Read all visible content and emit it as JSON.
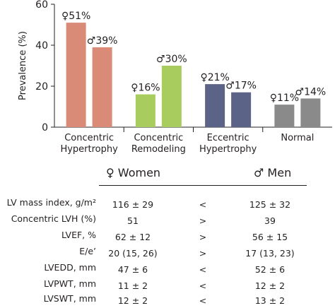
{
  "chart_data": {
    "type": "bar",
    "ylabel": "Prevalence (%)",
    "ylim": [
      0,
      60
    ],
    "yticks": [
      0,
      20,
      40,
      60
    ],
    "categories": [
      [
        "Concentric",
        "Hypertrophy"
      ],
      [
        "Concentric",
        "Remodeling"
      ],
      [
        "Eccentric",
        "Hypertrophy"
      ],
      [
        "Normal"
      ]
    ],
    "series": [
      {
        "values": [
          51,
          16,
          21,
          11
        ],
        "labels": [
          "♀51%",
          "♀16%",
          "♀21%",
          "♀11%"
        ]
      },
      {
        "values": [
          39,
          30,
          17,
          14
        ],
        "labels": [
          "♂39%",
          "♂30%",
          "♂17%",
          "♂14%"
        ]
      }
    ],
    "colors": {
      "female": [
        "#d98b78",
        "#a9cc5e",
        "#5b6387",
        "#8a8a8a"
      ],
      "male": [
        "#d98b78",
        "#a9cc5e",
        "#5b6387",
        "#8a8a8a"
      ]
    },
    "legend": "none",
    "grid": false
  },
  "table": {
    "women_header": "♀ Women",
    "men_header": "♂ Men",
    "rows": [
      {
        "label": "LV mass index, g/m²",
        "women": "116 ± 29",
        "cmp": "<",
        "men": "125 ± 32"
      },
      {
        "label": "Concentric LVH (%)",
        "women": "51",
        "cmp": ">",
        "men": "39"
      },
      {
        "label": "LVEF, %",
        "women": "62 ± 12",
        "cmp": ">",
        "men": "56 ± 15"
      },
      {
        "label": "E/e’",
        "women": "20 (15, 26)",
        "cmp": ">",
        "men": "17 (13, 23)"
      },
      {
        "label": "LVEDD, mm",
        "women": "47 ± 6",
        "cmp": "<",
        "men": "52 ± 6"
      },
      {
        "label": "LVPWT, mm",
        "women": "11 ± 2",
        "cmp": "<",
        "men": "12 ± 2"
      },
      {
        "label": "LVSWT, mm",
        "women": "12 ± 2",
        "cmp": "<",
        "men": "13 ± 2"
      }
    ]
  }
}
